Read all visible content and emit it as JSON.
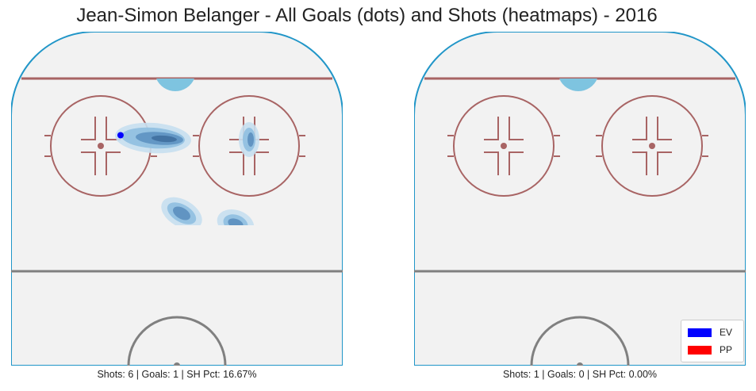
{
  "chart_data": {
    "type": "heatmap",
    "title": "Jean-Simon Belanger - All Goals (dots) and Shots (heatmaps) - 2016",
    "legend": {
      "placement": "bottom-right",
      "entries": [
        {
          "label": "EV",
          "color": "#0000ff"
        },
        {
          "label": "PP",
          "color": "#ff0000"
        }
      ]
    },
    "panels": [
      {
        "caption": "Shots: 6 | Goals: 1 | SH Pct: 16.67%",
        "goals": [
          {
            "x": 0.33,
            "y": 0.31,
            "strength": "EV",
            "color": "#0000ff"
          }
        ],
        "shot_density": [
          {
            "x": 0.4,
            "y": 0.3,
            "weight": 1.0
          },
          {
            "x": 0.47,
            "y": 0.33,
            "weight": 0.8
          },
          {
            "x": 0.73,
            "y": 0.33,
            "weight": 0.8
          },
          {
            "x": 0.52,
            "y": 0.57,
            "weight": 0.7
          },
          {
            "x": 0.68,
            "y": 0.59,
            "weight": 0.6
          }
        ]
      },
      {
        "caption": "Shots: 1 | Goals: 0 | SH Pct: 0.00%",
        "goals": [],
        "shot_density": []
      }
    ]
  }
}
